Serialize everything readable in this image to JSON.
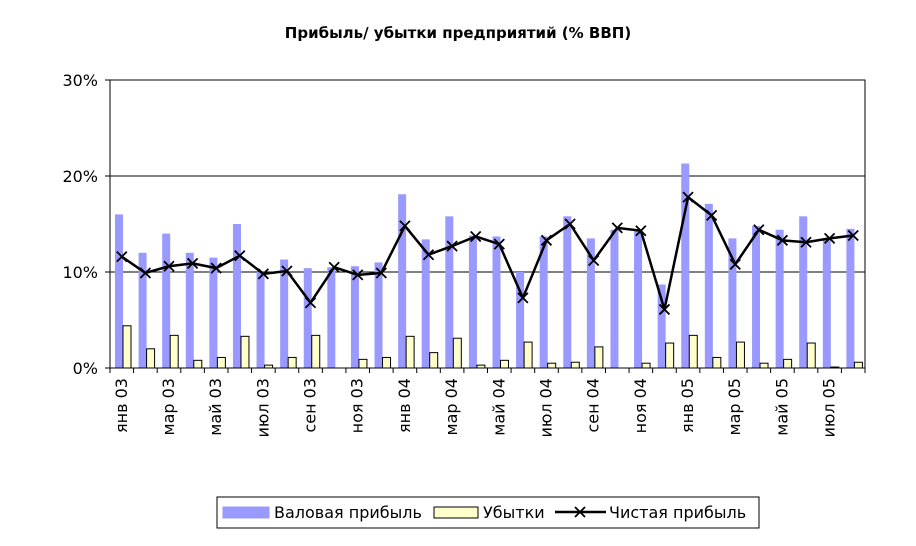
{
  "chart_data": {
    "type": "bar",
    "title": "Прибыль/ убытки предприятий (%  ВВП)",
    "xlabel": "",
    "ylabel": "",
    "ylim": [
      0,
      30
    ],
    "y_ticks": [
      "0%",
      "10%",
      "20%",
      "30%"
    ],
    "y_tick_values": [
      0,
      10,
      20,
      30
    ],
    "grid": true,
    "legend_position": "bottom",
    "categories": [
      "янв 03",
      "фев 03",
      "мар 03",
      "апр 03",
      "май 03",
      "июн 03",
      "июл 03",
      "авг 03",
      "сен 03",
      "окт 03",
      "ноя 03",
      "дек 03",
      "янв 04",
      "фев 04",
      "мар 04",
      "апр 04",
      "май 04",
      "июн 04",
      "июл 04",
      "авг 04",
      "сен 04",
      "окт 04",
      "ноя 04",
      "дек 04",
      "янв 05",
      "фев 05",
      "мар 05",
      "апр 05",
      "май 05",
      "июн 05",
      "июл 05",
      "авг 05"
    ],
    "x_tick_labels": [
      "янв 03",
      "мар 03",
      "май 03",
      "июл 03",
      "сен 03",
      "ноя 03",
      "янв 04",
      "мар 04",
      "май 04",
      "июл 04",
      "сен 04",
      "ноя 04",
      "янв 05",
      "мар 05",
      "май 05",
      "июл 05"
    ],
    "series": [
      {
        "name": "Валовая прибыль",
        "kind": "bar",
        "color": "#9999ff",
        "values": [
          16.0,
          12.0,
          14.0,
          12.0,
          11.5,
          15.0,
          10.0,
          11.3,
          10.4,
          10.5,
          10.6,
          11.0,
          18.1,
          13.4,
          15.8,
          13.8,
          13.7,
          10.0,
          13.7,
          15.8,
          13.5,
          14.4,
          14.4,
          8.7,
          21.3,
          17.1,
          13.5,
          14.8,
          14.4,
          15.8,
          13.4,
          14.5
        ]
      },
      {
        "name": "Убытки",
        "kind": "bar",
        "color": "#ffffcc",
        "values": [
          4.4,
          2.0,
          3.4,
          0.8,
          1.1,
          3.3,
          0.3,
          1.1,
          3.4,
          0.0,
          0.9,
          1.1,
          3.3,
          1.6,
          3.1,
          0.3,
          0.8,
          2.7,
          0.5,
          0.6,
          2.2,
          0.0,
          0.5,
          2.6,
          3.4,
          1.1,
          2.7,
          0.5,
          0.9,
          2.6,
          0.1,
          0.6
        ]
      },
      {
        "name": "Чистая прибыль",
        "kind": "line",
        "color": "#000000",
        "values": [
          11.6,
          9.9,
          10.6,
          10.9,
          10.4,
          11.7,
          9.8,
          10.1,
          6.8,
          10.5,
          9.7,
          9.9,
          14.8,
          11.8,
          12.7,
          13.7,
          12.9,
          7.3,
          13.3,
          15.0,
          11.2,
          14.6,
          14.3,
          6.1,
          17.8,
          15.9,
          10.8,
          14.4,
          13.3,
          13.1,
          13.5,
          13.8
        ]
      }
    ]
  }
}
